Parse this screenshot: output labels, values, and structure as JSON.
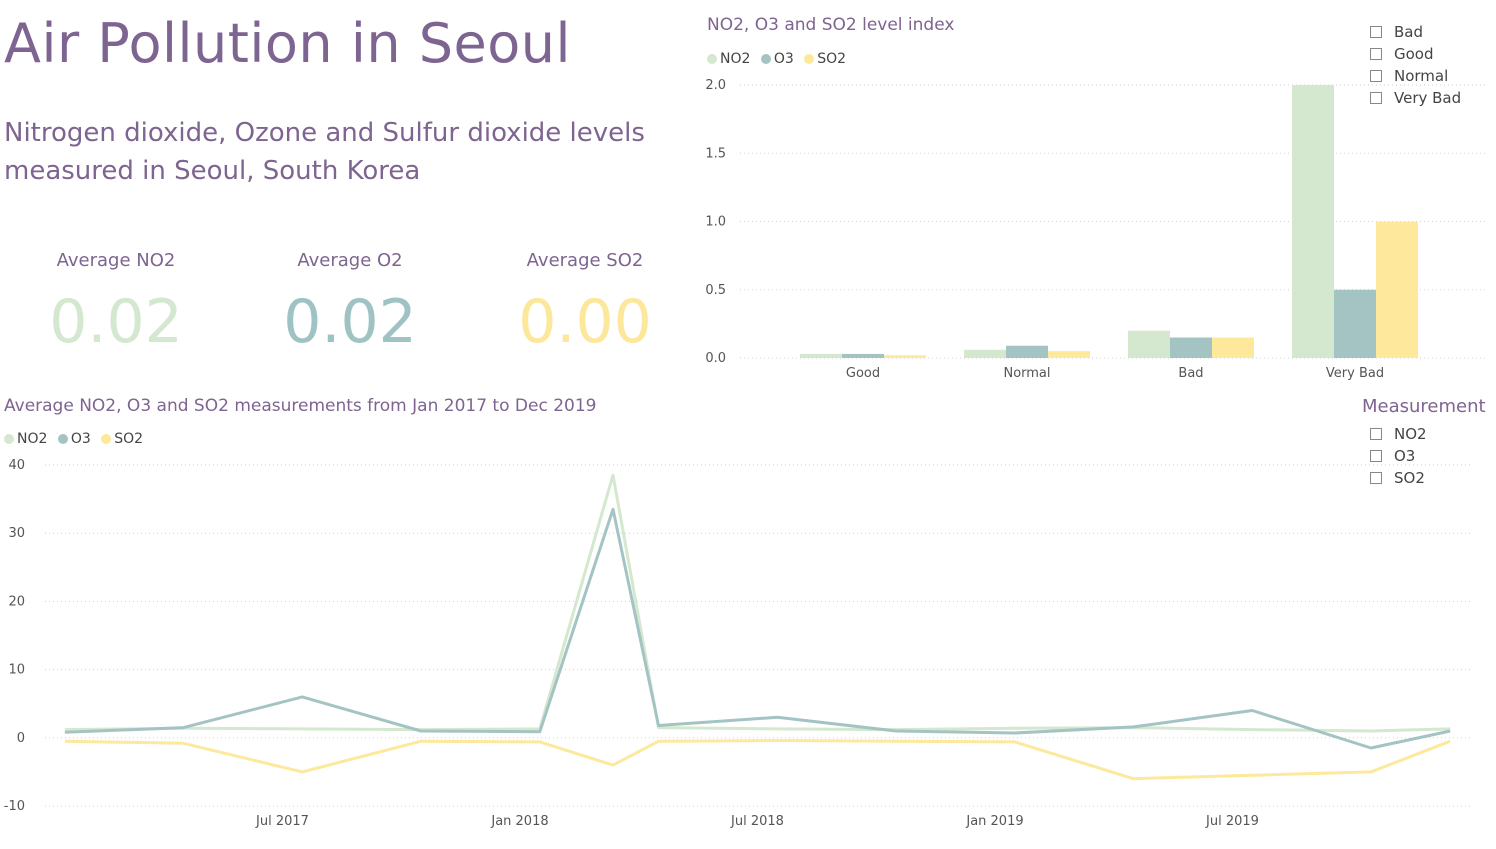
{
  "page": {
    "title": "Air Pollution in Seoul",
    "subtitle": "Nitrogen dioxide, Ozone and Sulfur dioxide levels measured in Seoul, South Korea"
  },
  "kpis": [
    {
      "label": "Average NO2",
      "value": "0.02",
      "color": "#d3e8cf"
    },
    {
      "label": "Average O2",
      "value": "0.02",
      "color": "#9fc3c4"
    },
    {
      "label": "Average SO2",
      "value": "0.00",
      "color": "#fce79a"
    }
  ],
  "level_slicer": {
    "options": [
      "Bad",
      "Good",
      "Normal",
      "Very Bad"
    ]
  },
  "measurement_slicer": {
    "title": "Measurement",
    "options": [
      "NO2",
      "O3",
      "SO2"
    ]
  },
  "colors": {
    "NO2": "#d3e8cf",
    "O3": "#a3c4c3",
    "SO2": "#fde89b",
    "text": "#7e6490"
  },
  "chart_data": [
    {
      "type": "bar",
      "title": "NO2, O3 and SO2 level index",
      "categories": [
        "Good",
        "Normal",
        "Bad",
        "Very Bad"
      ],
      "series": [
        {
          "name": "NO2",
          "values": [
            0.03,
            0.06,
            0.2,
            2.0
          ]
        },
        {
          "name": "O3",
          "values": [
            0.03,
            0.09,
            0.15,
            0.5
          ]
        },
        {
          "name": "SO2",
          "values": [
            0.02,
            0.05,
            0.15,
            1.0
          ]
        }
      ],
      "ylim": [
        0,
        2.0
      ],
      "yticks": [
        "0.0",
        "0.5",
        "1.0",
        "1.5",
        "2.0"
      ],
      "grid": true,
      "legend": "top-left"
    },
    {
      "type": "line",
      "title": "Average NO2, O3 and SO2 measurements from Jan 2017 to Dec 2019",
      "x_range": [
        "2017-01",
        "2019-12"
      ],
      "xticks": [
        "Jul 2017",
        "Jan 2018",
        "Jul 2018",
        "Jan 2019",
        "Jul 2019"
      ],
      "ylim": [
        -10,
        40
      ],
      "yticks": [
        "-10",
        "0",
        "10",
        "20",
        "30",
        "40"
      ],
      "grid": true,
      "legend": "top-left",
      "series": [
        {
          "name": "NO2",
          "x": [
            "2017-01",
            "2017-04",
            "2017-07",
            "2017-10",
            "2018-01",
            "2018-03",
            "2018-04",
            "2018-07",
            "2018-10",
            "2019-01",
            "2019-04",
            "2019-07",
            "2019-10",
            "2019-12"
          ],
          "y": [
            1.2,
            1.4,
            1.3,
            1.2,
            1.3,
            38.5,
            1.5,
            1.3,
            1.2,
            1.4,
            1.5,
            1.2,
            1.0,
            1.3
          ]
        },
        {
          "name": "O3",
          "x": [
            "2017-01",
            "2017-04",
            "2017-07",
            "2017-10",
            "2018-01",
            "2018-03",
            "2018-04",
            "2018-07",
            "2018-10",
            "2019-01",
            "2019-04",
            "2019-07",
            "2019-10",
            "2019-12"
          ],
          "y": [
            0.8,
            1.5,
            6.0,
            1.0,
            0.9,
            33.5,
            1.8,
            3.0,
            1.0,
            0.7,
            1.6,
            4.0,
            -1.5,
            1.0
          ]
        },
        {
          "name": "SO2",
          "x": [
            "2017-01",
            "2017-04",
            "2017-07",
            "2017-10",
            "2018-01",
            "2018-03",
            "2018-04",
            "2018-07",
            "2018-10",
            "2019-01",
            "2019-04",
            "2019-07",
            "2019-10",
            "2019-12"
          ],
          "y": [
            -0.5,
            -0.8,
            -5.0,
            -0.5,
            -0.6,
            -4.0,
            -0.5,
            -0.4,
            -0.5,
            -0.6,
            -6.0,
            -5.5,
            -5.0,
            -0.5
          ]
        }
      ]
    }
  ]
}
